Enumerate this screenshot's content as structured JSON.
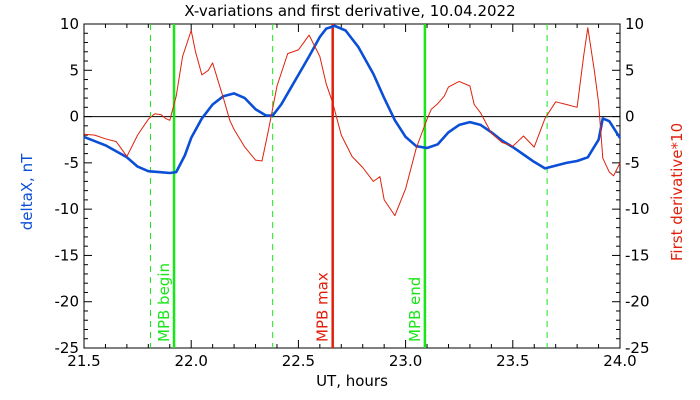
{
  "chart_data": {
    "type": "line",
    "title": "X-variations and first derivative, 10.04.2022",
    "xlabel": "UT, hours",
    "ylabel_left": "deltaX, nT",
    "ylabel_right": "First derivative*10",
    "xlim": [
      21.5,
      24.0
    ],
    "ylim": [
      -25,
      10
    ],
    "x_ticks": [
      "21.5",
      "22.0",
      "22.5",
      "23.0",
      "23.5",
      "24.0"
    ],
    "y_ticks": [
      "10",
      "5",
      "0",
      "-5",
      "-10",
      "-15",
      "-20",
      "-25"
    ],
    "zero_line": true,
    "colors": {
      "deltaX": "#0b4fd6",
      "derivative": "#e0200c",
      "mpb_boundary": "#19e619",
      "mpb_max": "#e0200c",
      "axes": "#000000"
    },
    "series": [
      {
        "key": "deltaX",
        "x": [
          21.5,
          21.6,
          21.7,
          21.75,
          21.8,
          21.85,
          21.9,
          21.93,
          21.97,
          22.0,
          22.05,
          22.1,
          22.15,
          22.2,
          22.25,
          22.3,
          22.35,
          22.38,
          22.42,
          22.46,
          22.5,
          22.55,
          22.6,
          22.63,
          22.67,
          22.72,
          22.78,
          22.85,
          22.9,
          22.95,
          23.0,
          23.05,
          23.1,
          23.15,
          23.2,
          23.25,
          23.3,
          23.35,
          23.4,
          23.45,
          23.5,
          23.55,
          23.6,
          23.65,
          23.7,
          23.75,
          23.8,
          23.85,
          23.9,
          23.92,
          23.95,
          24.0
        ],
        "values": [
          -2.2,
          -3.1,
          -4.4,
          -5.4,
          -5.9,
          -6.0,
          -6.1,
          -6.0,
          -4.2,
          -2.3,
          -0.2,
          1.3,
          2.2,
          2.5,
          2.0,
          0.8,
          0.1,
          0.1,
          1.3,
          2.9,
          4.5,
          6.5,
          8.6,
          9.5,
          9.8,
          9.3,
          7.5,
          4.6,
          2.0,
          -0.4,
          -2.2,
          -3.2,
          -3.4,
          -3.0,
          -1.7,
          -0.9,
          -0.6,
          -0.9,
          -1.7,
          -2.6,
          -3.3,
          -4.1,
          -4.9,
          -5.6,
          -5.3,
          -5.0,
          -4.8,
          -4.4,
          -2.5,
          -0.2,
          -0.5,
          -2.3
        ]
      },
      {
        "key": "derivative",
        "x": [
          21.5,
          21.55,
          21.6,
          21.65,
          21.7,
          21.75,
          21.8,
          21.83,
          21.86,
          21.88,
          21.9,
          21.93,
          21.96,
          22.0,
          22.02,
          22.05,
          22.08,
          22.1,
          22.13,
          22.15,
          22.18,
          22.2,
          22.25,
          22.3,
          22.33,
          22.36,
          22.4,
          22.45,
          22.5,
          22.55,
          22.6,
          22.63,
          22.66,
          22.7,
          22.75,
          22.8,
          22.85,
          22.88,
          22.9,
          22.95,
          23.0,
          23.05,
          23.08,
          23.1,
          23.12,
          23.15,
          23.18,
          23.2,
          23.25,
          23.3,
          23.32,
          23.35,
          23.4,
          23.45,
          23.5,
          23.55,
          23.6,
          23.65,
          23.7,
          23.75,
          23.8,
          23.83,
          23.85,
          23.88,
          23.9,
          23.92,
          23.95,
          23.97,
          24.0
        ],
        "values": [
          -1.9,
          -2.0,
          -2.4,
          -2.7,
          -4.3,
          -2.0,
          -0.3,
          0.3,
          0.2,
          -0.2,
          -0.4,
          2.2,
          6.5,
          9.3,
          7.0,
          4.5,
          5.0,
          5.8,
          3.5,
          2.0,
          -0.4,
          -1.4,
          -3.3,
          -4.7,
          -4.8,
          -1.5,
          3.3,
          6.8,
          7.2,
          8.8,
          6.5,
          3.5,
          1.5,
          -2.0,
          -4.3,
          -5.5,
          -7.0,
          -6.5,
          -9.0,
          -10.7,
          -7.8,
          -3.4,
          -1.5,
          -0.3,
          0.8,
          1.4,
          2.2,
          3.2,
          3.8,
          3.3,
          1.3,
          0.4,
          -1.8,
          -2.8,
          -3.2,
          -2.1,
          -3.3,
          -0.2,
          1.6,
          1.3,
          1.0,
          6.5,
          9.6,
          5.0,
          1.5,
          -4.5,
          -6.0,
          -6.4,
          -5.0
        ]
      }
    ],
    "vertical_markers": [
      {
        "x": 21.81,
        "style": "dashed",
        "color": "#19e619",
        "label": ""
      },
      {
        "x": 21.92,
        "style": "solid",
        "color": "#19e619",
        "label": "MPB begin"
      },
      {
        "x": 22.38,
        "style": "dashed",
        "color": "#19e619",
        "label": ""
      },
      {
        "x": 22.66,
        "style": "solid",
        "color": "#e0200c",
        "label": "MPB max"
      },
      {
        "x": 23.09,
        "style": "solid",
        "color": "#19e619",
        "label": "MPB end"
      },
      {
        "x": 23.66,
        "style": "dashed",
        "color": "#19e619",
        "label": ""
      }
    ]
  }
}
